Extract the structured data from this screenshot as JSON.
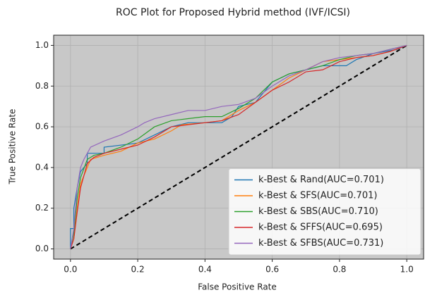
{
  "chart_data": {
    "type": "line",
    "title": "ROC Plot for Proposed Hybrid method (IVF/ICSI)",
    "xlabel": "False Positive Rate",
    "ylabel": "True Positive Rate",
    "xlim": [
      -0.05,
      1.05
    ],
    "ylim": [
      -0.05,
      1.05
    ],
    "xticks": [
      {
        "value": 0,
        "label": "0.0"
      },
      {
        "value": 0.2,
        "label": "0.2"
      },
      {
        "value": 0.4,
        "label": "0.4"
      },
      {
        "value": 0.6,
        "label": "0.6"
      },
      {
        "value": 0.8,
        "label": "0.8"
      },
      {
        "value": 1,
        "label": "1.0"
      }
    ],
    "yticks": [
      {
        "value": 0,
        "label": "0.0"
      },
      {
        "value": 0.2,
        "label": "0.2"
      },
      {
        "value": 0.4,
        "label": "0.4"
      },
      {
        "value": 0.6,
        "label": "0.6"
      },
      {
        "value": 0.8,
        "label": "0.8"
      },
      {
        "value": 1,
        "label": "1.0"
      }
    ],
    "grid": true,
    "legend": "lower right",
    "series": [
      {
        "name": "k-Best & Rand(AUC=0.701)",
        "color": "#1f77b4",
        "x": [
          0,
          0,
          0.01,
          0.01,
          0.02,
          0.03,
          0.05,
          0.05,
          0.1,
          0.1,
          0.2,
          0.25,
          0.3,
          0.35,
          0.45,
          0.48,
          0.5,
          0.55,
          0.6,
          0.65,
          0.7,
          0.75,
          0.82,
          0.85,
          0.9,
          0.97,
          1
        ],
        "values": [
          0,
          0.1,
          0.1,
          0.2,
          0.3,
          0.38,
          0.42,
          0.47,
          0.47,
          0.5,
          0.52,
          0.56,
          0.6,
          0.62,
          0.62,
          0.65,
          0.7,
          0.72,
          0.82,
          0.86,
          0.88,
          0.9,
          0.9,
          0.93,
          0.96,
          0.98,
          1
        ]
      },
      {
        "name": "k-Best & SFS(AUC=0.701)",
        "color": "#ff7f0e",
        "x": [
          0,
          0.01,
          0.02,
          0.03,
          0.05,
          0.06,
          0.1,
          0.15,
          0.2,
          0.25,
          0.3,
          0.33,
          0.4,
          0.45,
          0.5,
          0.55,
          0.6,
          0.65,
          0.7,
          0.75,
          0.8,
          0.85,
          0.9,
          0.95,
          1
        ],
        "values": [
          0,
          0.05,
          0.2,
          0.32,
          0.4,
          0.44,
          0.46,
          0.48,
          0.52,
          0.54,
          0.58,
          0.61,
          0.62,
          0.63,
          0.68,
          0.72,
          0.78,
          0.84,
          0.88,
          0.92,
          0.93,
          0.94,
          0.95,
          0.97,
          1
        ]
      },
      {
        "name": "k-Best & SBS(AUC=0.710)",
        "color": "#2ca02c",
        "x": [
          0,
          0.01,
          0.02,
          0.03,
          0.05,
          0.07,
          0.1,
          0.15,
          0.2,
          0.25,
          0.3,
          0.35,
          0.4,
          0.45,
          0.5,
          0.55,
          0.6,
          0.65,
          0.7,
          0.75,
          0.8,
          0.85,
          0.9,
          0.95,
          1
        ],
        "values": [
          0,
          0.08,
          0.25,
          0.35,
          0.44,
          0.46,
          0.47,
          0.5,
          0.54,
          0.6,
          0.63,
          0.64,
          0.65,
          0.65,
          0.69,
          0.74,
          0.82,
          0.86,
          0.88,
          0.9,
          0.93,
          0.95,
          0.96,
          0.98,
          1
        ]
      },
      {
        "name": "k-Best & SFFS(AUC=0.695)",
        "color": "#d62728",
        "x": [
          0,
          0.01,
          0.02,
          0.03,
          0.05,
          0.07,
          0.1,
          0.15,
          0.2,
          0.25,
          0.3,
          0.35,
          0.4,
          0.45,
          0.5,
          0.55,
          0.6,
          0.65,
          0.7,
          0.75,
          0.8,
          0.85,
          0.9,
          0.95,
          1
        ],
        "values": [
          0,
          0.05,
          0.18,
          0.3,
          0.42,
          0.45,
          0.47,
          0.49,
          0.51,
          0.55,
          0.6,
          0.61,
          0.62,
          0.63,
          0.66,
          0.72,
          0.78,
          0.82,
          0.87,
          0.88,
          0.92,
          0.94,
          0.95,
          0.97,
          1
        ]
      },
      {
        "name": "k-Best & SFBS(AUC=0.731)",
        "color": "#9467bd",
        "x": [
          0,
          0.01,
          0.02,
          0.03,
          0.04,
          0.06,
          0.1,
          0.15,
          0.2,
          0.22,
          0.25,
          0.3,
          0.35,
          0.4,
          0.45,
          0.5,
          0.55,
          0.6,
          0.65,
          0.7,
          0.75,
          0.8,
          0.85,
          0.9,
          0.95,
          1
        ],
        "values": [
          0,
          0.1,
          0.3,
          0.4,
          0.44,
          0.5,
          0.53,
          0.56,
          0.6,
          0.62,
          0.64,
          0.66,
          0.68,
          0.68,
          0.7,
          0.71,
          0.74,
          0.8,
          0.85,
          0.88,
          0.92,
          0.94,
          0.95,
          0.96,
          0.98,
          1
        ]
      }
    ]
  }
}
